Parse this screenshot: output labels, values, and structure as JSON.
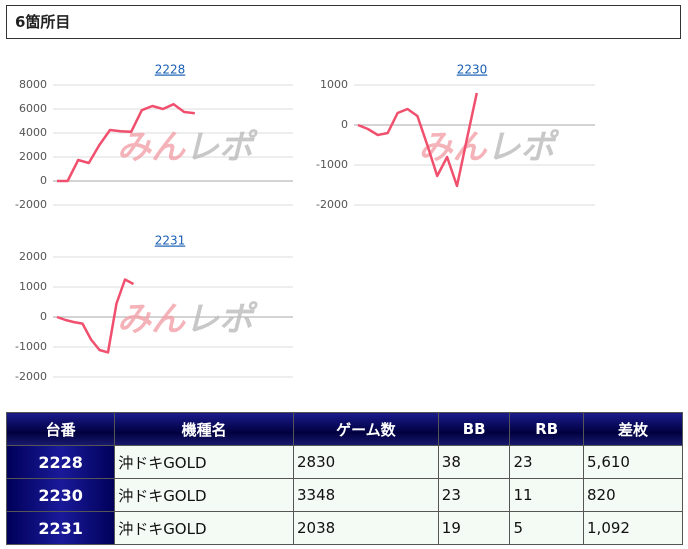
{
  "header": {
    "title": "6箇所目"
  },
  "watermark": [
    "みん",
    "レポ"
  ],
  "chart_data": [
    {
      "type": "line",
      "title": "2228",
      "color": "#f0506e",
      "grid": true,
      "values": [
        0,
        0,
        1750,
        1500,
        3000,
        4250,
        4150,
        4100,
        5900,
        6250,
        6000,
        6400,
        5750,
        5650
      ],
      "ylim": [
        -2000,
        8000
      ],
      "yticks": [
        -2000,
        0,
        2000,
        4000,
        6000,
        8000
      ]
    },
    {
      "type": "line",
      "title": "2230",
      "color": "#f0506e",
      "grid": true,
      "values": [
        0,
        -100,
        -250,
        -200,
        300,
        400,
        225,
        -500,
        -1275,
        -800,
        -1525,
        -350,
        800
      ],
      "ylim": [
        -2000,
        1000
      ],
      "yticks": [
        -2000,
        -1000,
        0,
        1000
      ]
    },
    {
      "type": "line",
      "title": "2231",
      "color": "#f0506e",
      "grid": true,
      "values": [
        0,
        -100,
        -170,
        -220,
        -750,
        -1100,
        -1180,
        450,
        1250,
        1100
      ],
      "ylim": [
        -2000,
        2000
      ],
      "yticks": [
        -2000,
        -1000,
        0,
        1000,
        2000
      ]
    }
  ],
  "table": {
    "header": [
      "台番",
      "機種名",
      "ゲーム数",
      "BB",
      "RB",
      "差枚"
    ],
    "rows": [
      [
        "2228",
        "沖ドキGOLD",
        "2830",
        "38",
        "23",
        "5,610"
      ],
      [
        "2230",
        "沖ドキGOLD",
        "3348",
        "23",
        "11",
        "820"
      ],
      [
        "2231",
        "沖ドキGOLD",
        "2038",
        "19",
        "5",
        "1,092"
      ]
    ]
  }
}
